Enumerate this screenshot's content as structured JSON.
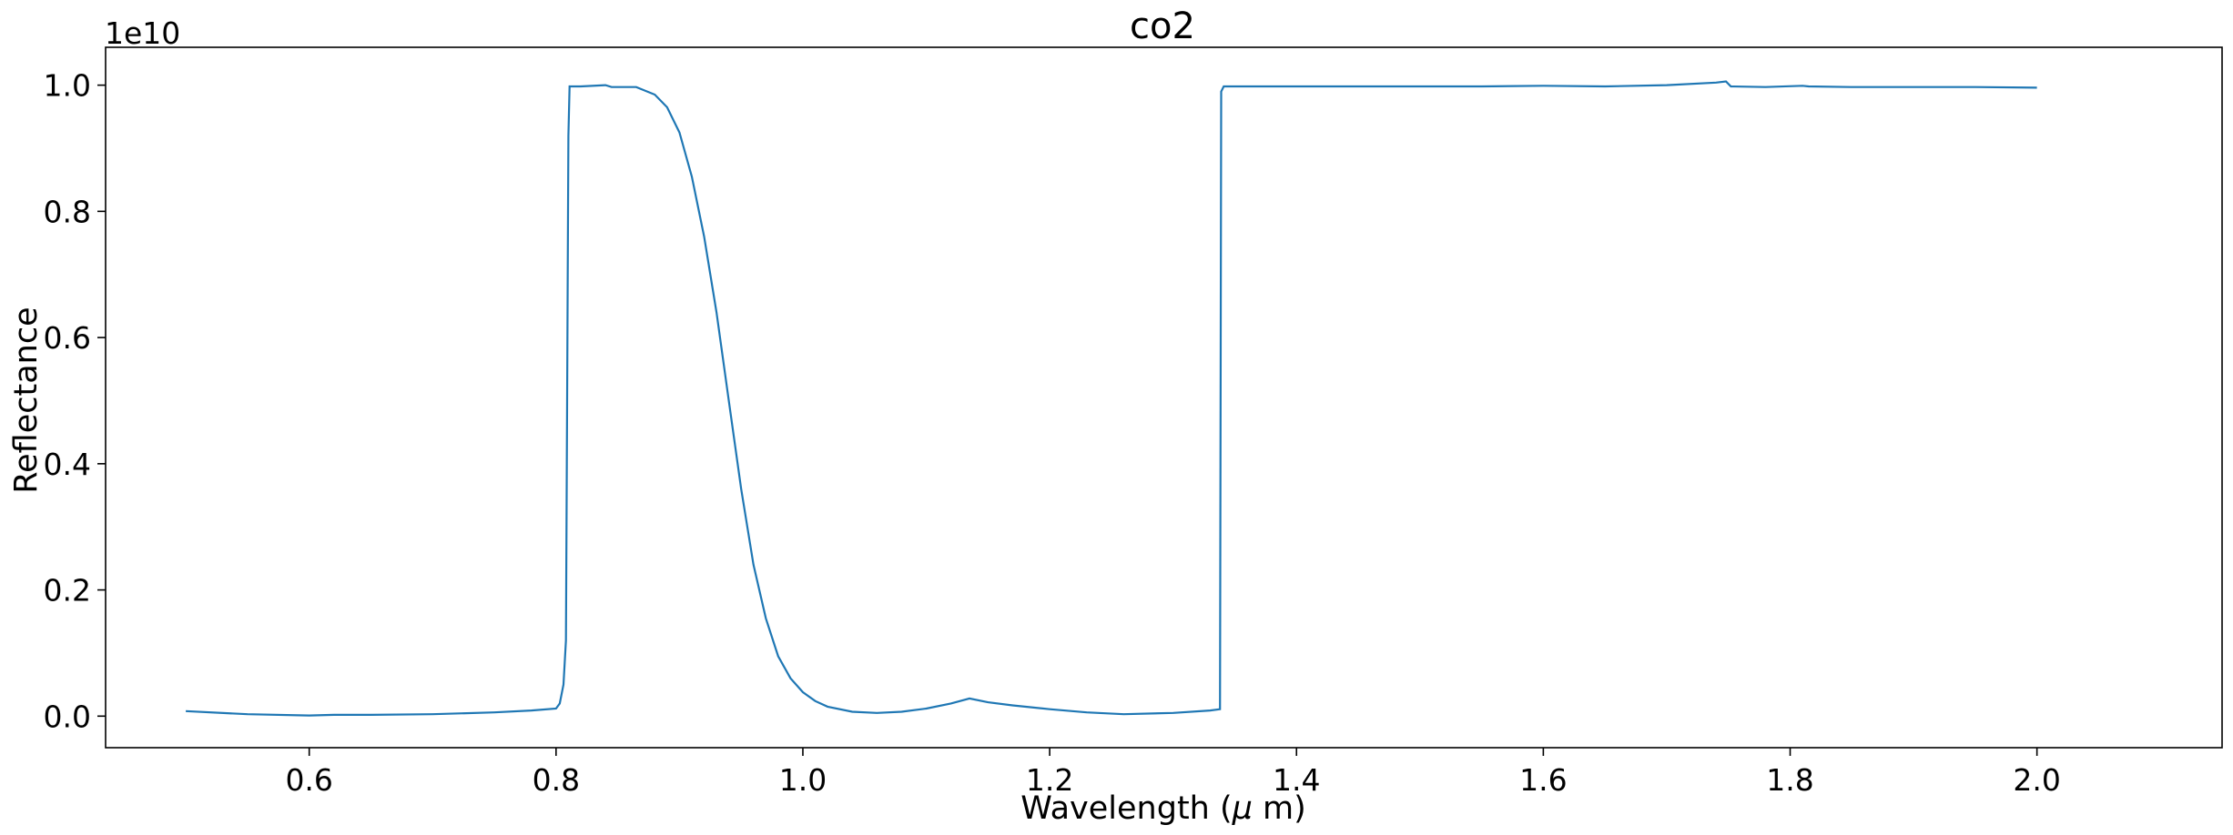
{
  "chart_data": {
    "type": "line",
    "title": "co2",
    "xlabel": "Wavelength ($\\mu$ m)",
    "xlabel_parts": {
      "prefix": "Wavelength (",
      "symbol": "μ",
      "suffix": " m)"
    },
    "ylabel": "Reflectance",
    "y_offset_label": "1e10",
    "y_scale_factor": 10000000000,
    "xlim": [
      0.435,
      2.15
    ],
    "ylim": [
      -0.05,
      1.06
    ],
    "xticks": [
      0.6,
      0.8,
      1.0,
      1.2,
      1.4,
      1.6,
      1.8,
      2.0
    ],
    "xtick_labels": [
      "0.6",
      "0.8",
      "1.0",
      "1.2",
      "1.4",
      "1.6",
      "1.8",
      "2.0"
    ],
    "yticks": [
      0.0,
      0.2,
      0.4,
      0.6,
      0.8,
      1.0
    ],
    "ytick_labels": [
      "0.0",
      "0.2",
      "0.4",
      "0.6",
      "0.8",
      "1.0"
    ],
    "grid": false,
    "legend": "none",
    "line_color": "#1f77b4",
    "series": [
      {
        "x": [
          0.5,
          0.55,
          0.6,
          0.62,
          0.65,
          0.7,
          0.75,
          0.78,
          0.8,
          0.803,
          0.806,
          0.808,
          0.809,
          0.81,
          0.811,
          0.812,
          0.82,
          0.84,
          0.845,
          0.85,
          0.865,
          0.87,
          0.88,
          0.89,
          0.9,
          0.91,
          0.92,
          0.93,
          0.94,
          0.95,
          0.96,
          0.97,
          0.98,
          0.99,
          1.0,
          1.01,
          1.02,
          1.04,
          1.06,
          1.08,
          1.1,
          1.12,
          1.135,
          1.15,
          1.17,
          1.2,
          1.23,
          1.26,
          1.3,
          1.33,
          1.338,
          1.339,
          1.341,
          1.35,
          1.4,
          1.45,
          1.5,
          1.55,
          1.6,
          1.65,
          1.7,
          1.74,
          1.748,
          1.752,
          1.78,
          1.81,
          1.815,
          1.85,
          1.9,
          1.95,
          2.0
        ],
        "y": [
          0.008,
          0.003,
          0.001,
          0.002,
          0.002,
          0.003,
          0.006,
          0.009,
          0.012,
          0.02,
          0.05,
          0.12,
          0.5,
          0.92,
          0.998,
          0.998,
          0.998,
          1.0,
          0.997,
          0.997,
          0.997,
          0.993,
          0.985,
          0.965,
          0.925,
          0.855,
          0.76,
          0.64,
          0.5,
          0.36,
          0.24,
          0.155,
          0.095,
          0.06,
          0.038,
          0.024,
          0.015,
          0.007,
          0.005,
          0.007,
          0.012,
          0.02,
          0.028,
          0.022,
          0.017,
          0.011,
          0.006,
          0.003,
          0.005,
          0.009,
          0.011,
          0.99,
          0.998,
          0.998,
          0.998,
          0.998,
          0.998,
          0.998,
          0.999,
          0.998,
          1.0,
          1.004,
          1.006,
          0.998,
          0.997,
          0.999,
          0.998,
          0.997,
          0.997,
          0.997,
          0.996
        ]
      }
    ]
  }
}
